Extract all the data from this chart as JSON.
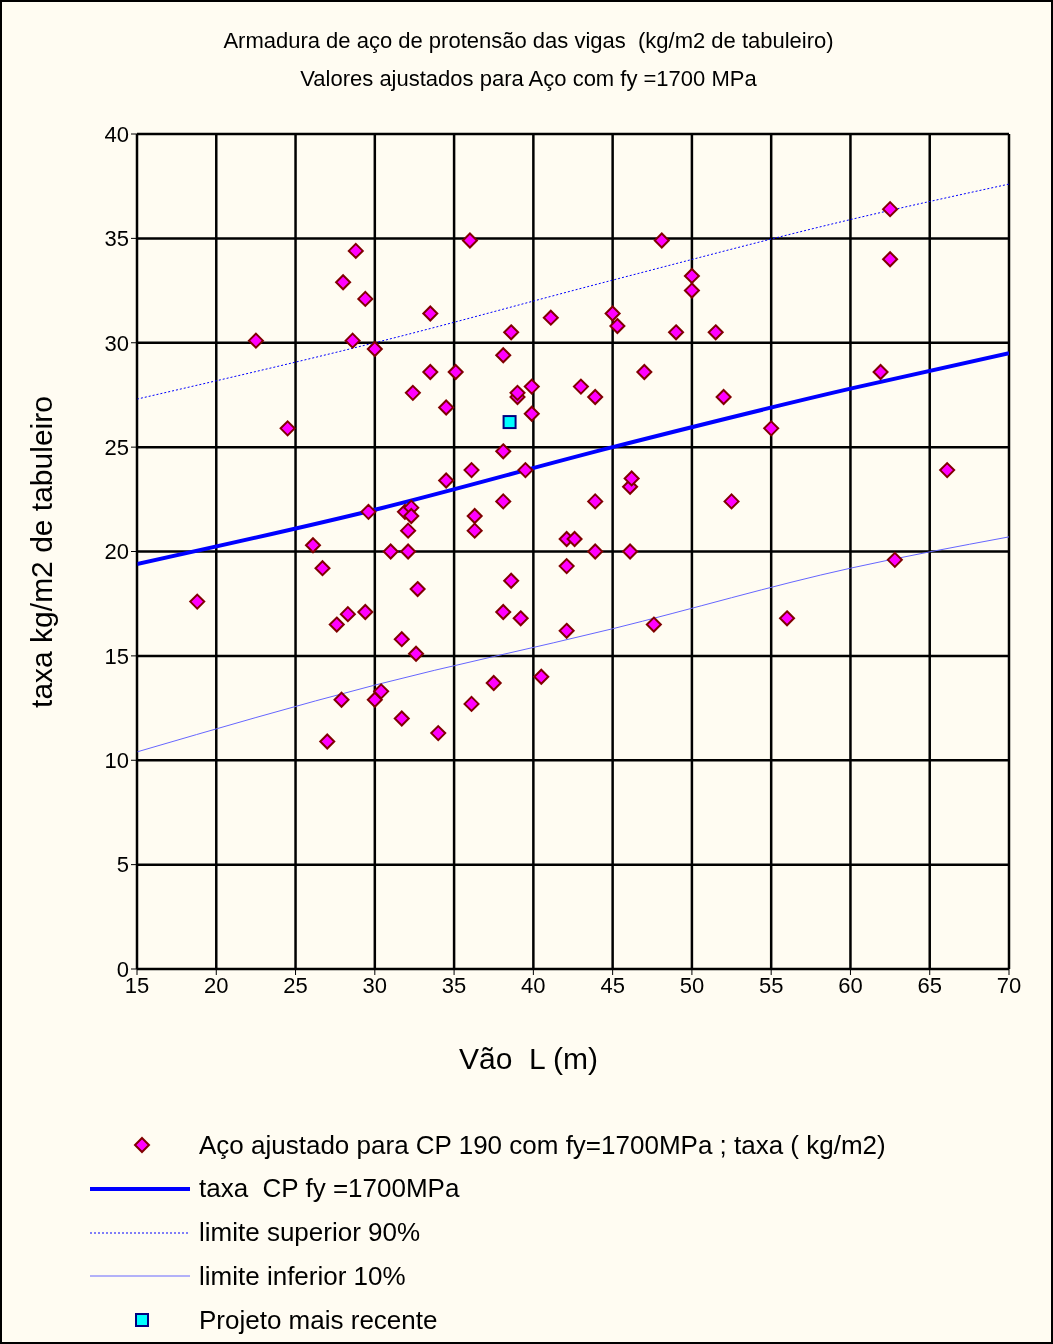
{
  "chart_data": {
    "type": "scatter",
    "title": "Armadura de aço de protensão das vigas  (kg/m2 de tabuleiro)",
    "subtitle": "Valores ajustados para Aço com fy =1700 MPa",
    "xlabel": "Vão  L (m)",
    "ylabel": "taxa kg/m2 de tabuleiro",
    "xlim": [
      15,
      70
    ],
    "xticks": [
      15,
      20,
      25,
      30,
      35,
      40,
      45,
      50,
      55,
      60,
      65,
      70
    ],
    "ylim": [
      0,
      40
    ],
    "yticks": [
      0,
      5,
      10,
      15,
      20,
      25,
      30,
      35,
      40
    ],
    "grid": true,
    "legend": "bottom",
    "series": [
      {
        "name": "Aço ajustado para CP 190 com fy=1700MPa ; taxa ( kg/m2)",
        "type": "scatter",
        "marker": "diamond",
        "color": "#ff00ff",
        "x": [
          18.8,
          22.5,
          24.5,
          26.1,
          26.7,
          27.0,
          27.6,
          27.9,
          28.0,
          28.3,
          28.6,
          28.8,
          29.4,
          29.4,
          29.6,
          30.0,
          30.0,
          30.4,
          31.0,
          31.7,
          31.7,
          31.9,
          32.1,
          32.1,
          32.3,
          32.3,
          32.4,
          32.6,
          32.7,
          33.5,
          33.5,
          34.0,
          34.5,
          34.5,
          35.1,
          36.0,
          36.1,
          36.1,
          36.3,
          36.3,
          37.5,
          38.1,
          38.1,
          38.1,
          38.1,
          38.6,
          38.6,
          39.0,
          39.0,
          39.2,
          39.5,
          39.9,
          39.9,
          40.5,
          41.1,
          42.1,
          42.1,
          42.1,
          42.6,
          43.0,
          43.9,
          43.9,
          43.9,
          45.0,
          45.3,
          46.1,
          46.2,
          46.1,
          47.0,
          47.6,
          48.1,
          49.0,
          50.0,
          50.0,
          51.5,
          52.0,
          52.5,
          55.0,
          56.0,
          61.9,
          62.5,
          62.5,
          62.8,
          66.1
        ],
        "values": [
          17.6,
          30.1,
          25.9,
          20.3,
          19.2,
          10.9,
          16.5,
          12.9,
          32.9,
          17.0,
          30.1,
          34.4,
          32.1,
          17.1,
          21.9,
          29.7,
          12.9,
          13.3,
          20.0,
          15.8,
          12.0,
          21.9,
          21.0,
          20.0,
          22.1,
          21.7,
          27.6,
          15.1,
          18.2,
          31.4,
          28.6,
          11.3,
          26.9,
          23.4,
          28.6,
          34.9,
          23.9,
          12.7,
          21.7,
          21.0,
          13.7,
          29.4,
          24.8,
          22.4,
          17.1,
          30.5,
          18.6,
          27.4,
          27.6,
          16.8,
          23.9,
          26.6,
          27.9,
          14.0,
          31.2,
          20.6,
          19.3,
          16.2,
          20.6,
          27.9,
          27.4,
          22.4,
          20.0,
          31.4,
          30.8,
          23.1,
          23.5,
          20.0,
          28.6,
          16.5,
          34.9,
          30.5,
          33.2,
          32.5,
          30.5,
          27.4,
          22.4,
          25.9,
          16.8,
          28.6,
          36.4,
          34.0,
          19.6,
          23.9
        ]
      },
      {
        "name": "taxa  CP fy =1700MPa",
        "type": "line",
        "marker": "none",
        "line_style": "solid",
        "color": "#0000ff",
        "x": [
          15,
          30,
          45,
          60,
          70
        ],
        "values": [
          19.4,
          22.0,
          25.0,
          27.8,
          29.5
        ]
      },
      {
        "name": "limite superior 90%",
        "type": "line",
        "marker": "none",
        "line_style": "dotted",
        "color": "#0000ff",
        "x": [
          15,
          30,
          45,
          60,
          70
        ],
        "values": [
          27.3,
          30.0,
          33.0,
          35.9,
          37.6
        ]
      },
      {
        "name": "limite inferior 10%",
        "type": "line",
        "marker": "none",
        "line_style": "solid",
        "color": "#6666ff",
        "x": [
          15,
          30,
          45,
          60,
          70
        ],
        "values": [
          10.4,
          13.6,
          16.3,
          19.2,
          20.7
        ]
      },
      {
        "name": "Projeto mais recente",
        "type": "scatter",
        "marker": "square",
        "color": "#00ffff",
        "x": [
          38.5
        ],
        "values": [
          26.2
        ]
      }
    ]
  }
}
